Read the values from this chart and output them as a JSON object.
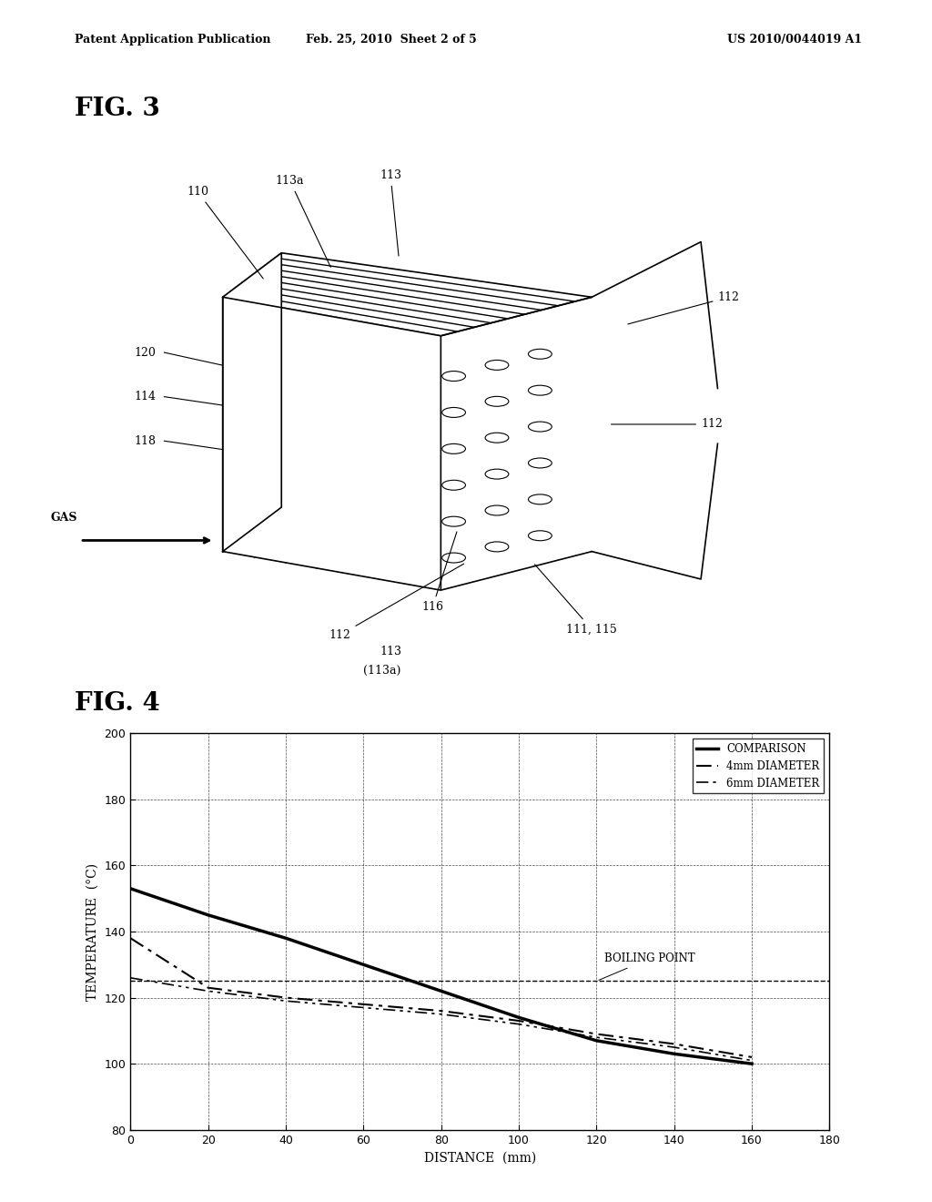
{
  "header_left": "Patent Application Publication",
  "header_mid": "Feb. 25, 2010  Sheet 2 of 5",
  "header_right": "US 2010/0044019 A1",
  "fig3_label": "FIG. 3",
  "fig4_label": "FIG. 4",
  "graph": {
    "xlabel": "DISTANCE  (mm)",
    "ylabel": "TEMPERATURE  (°C)",
    "xlim": [
      0,
      180
    ],
    "ylim": [
      80,
      200
    ],
    "xticks": [
      0,
      20,
      40,
      60,
      80,
      100,
      120,
      140,
      160,
      180
    ],
    "yticks": [
      80,
      100,
      120,
      140,
      160,
      180,
      200
    ],
    "boiling_point_y": 125,
    "boiling_point_label": "BOILING POINT",
    "comparison_x": [
      0,
      20,
      40,
      60,
      80,
      100,
      120,
      140,
      160
    ],
    "comparison_y": [
      153,
      145,
      138,
      130,
      122,
      114,
      107,
      103,
      100
    ],
    "mm4_x": [
      0,
      20,
      40,
      60,
      80,
      100,
      120,
      140,
      160
    ],
    "mm4_y": [
      138,
      123,
      120,
      118,
      116,
      113,
      109,
      106,
      102
    ],
    "mm6_x": [
      0,
      20,
      40,
      60,
      80,
      100,
      120,
      140,
      160
    ],
    "mm6_y": [
      126,
      122,
      119,
      117,
      115,
      112,
      108,
      105,
      101
    ],
    "legend_comparison": "COMPARISON",
    "legend_4mm": "4mm DIAMETER",
    "legend_6mm": "6mm DIAMETER",
    "bg_color": "#ffffff",
    "line_color": "#000000"
  }
}
